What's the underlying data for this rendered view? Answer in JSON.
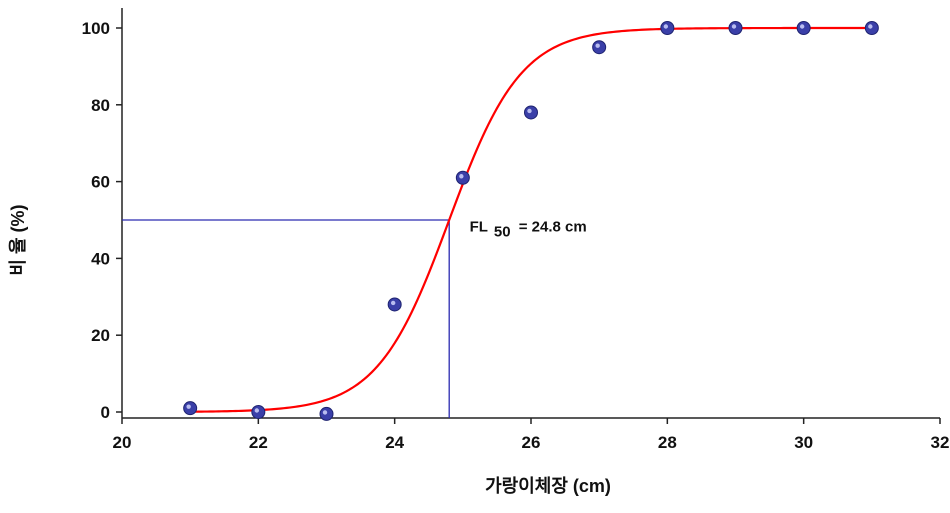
{
  "chart_data": {
    "type": "scatter",
    "title": "",
    "xlabel": "가랑이체장 (cm)",
    "ylabel": "비 율 (%)",
    "xlim": [
      20,
      32
    ],
    "ylim": [
      0,
      100
    ],
    "x_ticks": [
      20,
      22,
      24,
      26,
      28,
      30,
      32
    ],
    "y_ticks": [
      0,
      20,
      40,
      60,
      80,
      100
    ],
    "grid": false,
    "legend": "none",
    "series": [
      {
        "kind": "points",
        "color": "#3a3fa8",
        "x": [
          21,
          22,
          23,
          24,
          25,
          26,
          27,
          28,
          29,
          30,
          31
        ],
        "y": [
          1,
          0,
          -0.5,
          28,
          61,
          78,
          95,
          100,
          100,
          100,
          100
        ]
      },
      {
        "kind": "fitted_curve",
        "model": "logistic",
        "midpoint": 24.8,
        "slope": 1.9,
        "color": "#ff0000"
      }
    ],
    "reference_lines": {
      "y": 50,
      "x": 24.8,
      "color": "#2a2ab0"
    },
    "annotation": {
      "prefix": "FL",
      "subscript": "50",
      "suffix": "= 24.8 cm",
      "anchor_x": 25.1,
      "anchor_y": 47
    }
  }
}
